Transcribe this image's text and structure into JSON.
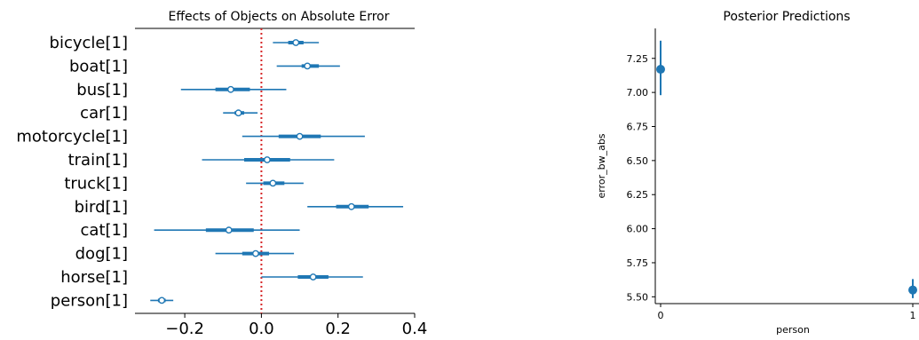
{
  "colors": {
    "series": "#1f77b4",
    "reference_line": "#d62728",
    "axis": "#000000"
  },
  "chart_data": [
    {
      "type": "forest",
      "title": "Effects of Objects on Absolute Error",
      "xlim": [
        -0.33,
        0.4
      ],
      "xticks": [
        -0.2,
        0.0,
        0.2,
        0.4
      ],
      "xtick_labels": [
        "−0.2",
        "0.0",
        "0.2",
        "0.4"
      ],
      "reference_line": 0.0,
      "categories": [
        "bicycle[1]",
        "boat[1]",
        "bus[1]",
        "car[1]",
        "motorcycle[1]",
        "train[1]",
        "truck[1]",
        "bird[1]",
        "cat[1]",
        "dog[1]",
        "horse[1]",
        "person[1]"
      ],
      "mean": [
        0.09,
        0.12,
        -0.08,
        -0.06,
        0.1,
        0.015,
        0.03,
        0.235,
        -0.085,
        -0.015,
        0.135,
        -0.26
      ],
      "hdi_low": [
        0.03,
        0.04,
        -0.21,
        -0.1,
        -0.05,
        -0.155,
        -0.04,
        0.12,
        -0.28,
        -0.12,
        0.0,
        -0.29
      ],
      "hdi_high": [
        0.15,
        0.205,
        0.065,
        -0.01,
        0.27,
        0.19,
        0.11,
        0.37,
        0.1,
        0.085,
        0.265,
        -0.23
      ],
      "iqr_low": [
        0.07,
        0.105,
        -0.12,
        -0.07,
        0.045,
        -0.045,
        0.005,
        0.195,
        -0.145,
        -0.05,
        0.095,
        -0.27
      ],
      "iqr_high": [
        0.11,
        0.15,
        -0.03,
        -0.045,
        0.155,
        0.075,
        0.06,
        0.28,
        -0.02,
        0.02,
        0.175,
        -0.25
      ]
    },
    {
      "type": "scatter",
      "title": "Posterior Predictions",
      "xlabel": "person",
      "ylabel": "error_bw_abs",
      "xticks": [
        0,
        1
      ],
      "ylim": [
        5.45,
        7.47
      ],
      "yticks": [
        5.5,
        5.75,
        6.0,
        6.25,
        6.5,
        6.75,
        7.0,
        7.25
      ],
      "ytick_labels": [
        "5.50",
        "5.75",
        "6.00",
        "6.25",
        "6.50",
        "6.75",
        "7.00",
        "7.25"
      ],
      "points": [
        {
          "x": 0,
          "y": 7.17,
          "low": 6.98,
          "high": 7.38
        },
        {
          "x": 1,
          "y": 5.55,
          "low": 5.49,
          "high": 5.63
        }
      ]
    }
  ]
}
